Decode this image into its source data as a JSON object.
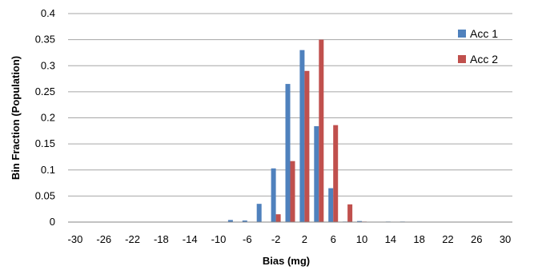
{
  "chart_data": {
    "type": "bar",
    "title": "",
    "xlabel": "Bias (mg)",
    "ylabel": "Bin Fraction (Population)",
    "ylim": [
      0,
      0.4
    ],
    "y_ticks": [
      "0",
      "0.05",
      "0.1",
      "0.15",
      "0.2",
      "0.25",
      "0.3",
      "0.35",
      "0.4"
    ],
    "x_tick_labels": [
      "-30",
      "-26",
      "-22",
      "-18",
      "-14",
      "-10",
      "-6",
      "-2",
      "2",
      "6",
      "10",
      "14",
      "18",
      "22",
      "26",
      "30"
    ],
    "categories": [
      "-30",
      "-28",
      "-26",
      "-24",
      "-22",
      "-20",
      "-18",
      "-16",
      "-14",
      "-12",
      "-10",
      "-8",
      "-6",
      "-4",
      "-2",
      "0",
      "2",
      "4",
      "6",
      "8",
      "10",
      "12",
      "14",
      "16",
      "18",
      "20",
      "22",
      "24",
      "26",
      "28",
      "30"
    ],
    "grid": true,
    "legend_position": "top-right",
    "series": [
      {
        "name": "Acc 1",
        "color": "#4F81BD",
        "values": [
          0,
          0,
          0,
          0,
          0,
          0,
          0,
          0,
          0,
          0,
          0,
          0.004,
          0.003,
          0.035,
          0.103,
          0.265,
          0.33,
          0.184,
          0.065,
          0.001,
          0.002,
          0,
          0.001,
          0.001,
          0,
          0,
          0,
          0,
          0,
          0,
          0
        ]
      },
      {
        "name": "Acc 2",
        "color": "#C0504D",
        "values": [
          0,
          0,
          0,
          0,
          0,
          0,
          0,
          0,
          0,
          0,
          0,
          0,
          0,
          0,
          0.015,
          0.117,
          0.29,
          0.35,
          0.186,
          0.034,
          0.001,
          0,
          0,
          0,
          0,
          0,
          0,
          0,
          0,
          0,
          0
        ]
      }
    ]
  }
}
